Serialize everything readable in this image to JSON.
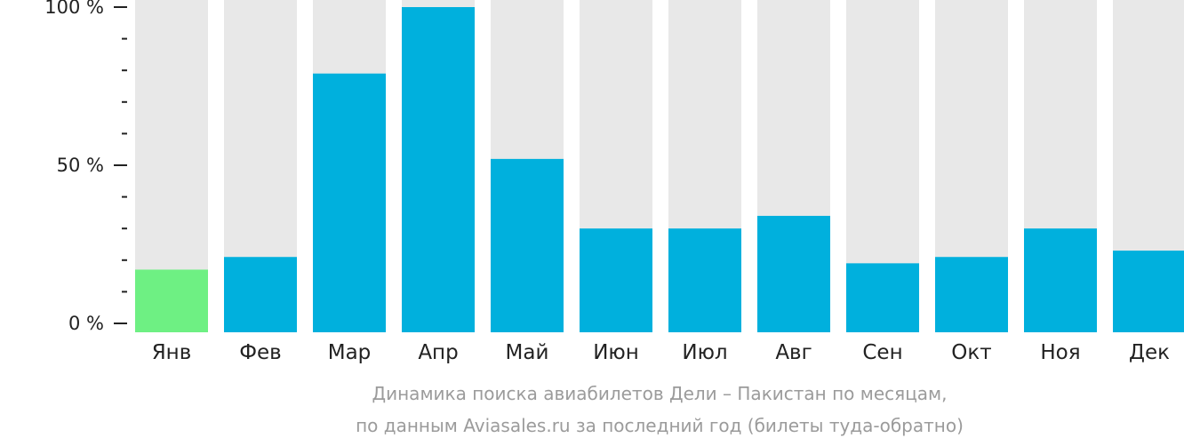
{
  "chart_data": {
    "type": "bar",
    "categories": [
      "Янв",
      "Фев",
      "Мар",
      "Апр",
      "Май",
      "Июн",
      "Июл",
      "Авг",
      "Сен",
      "Окт",
      "Ноя",
      "Дек"
    ],
    "values": [
      17,
      21,
      79,
      100,
      52,
      30,
      30,
      34,
      19,
      21,
      30,
      23
    ],
    "ylim": [
      0,
      100
    ],
    "y_tick_labels": [
      "100 %",
      "50 %",
      "0 %"
    ],
    "y_tick_values": [
      100,
      50,
      0
    ],
    "minor_tick_step": 10,
    "highlight_index": 0,
    "colors": {
      "bar": "#00b0dd",
      "highlight": "#6ef083",
      "background_bar": "#e8e8e8",
      "axis_text": "#222222",
      "caption": "#9b9b9b"
    },
    "caption_line1": "Динамика поиска авиабилетов Дели – Пакистан по месяцам,",
    "caption_line2": "по данным Aviasales.ru за последний год (билеты туда-обратно)"
  }
}
